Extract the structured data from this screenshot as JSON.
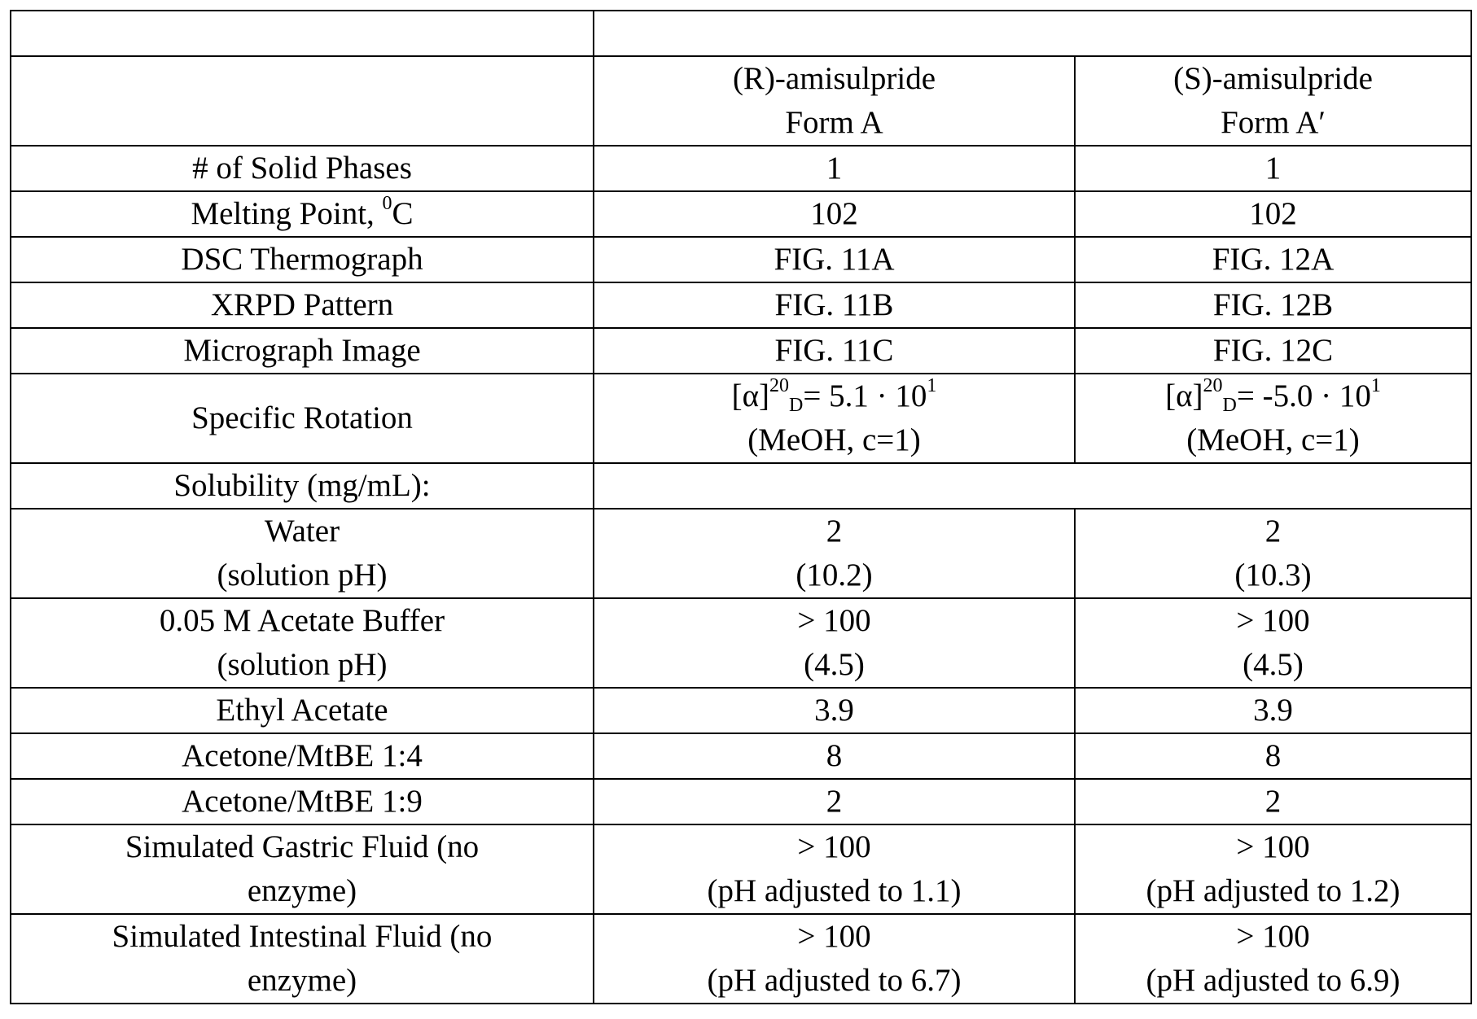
{
  "columns": [
    "",
    "(R)-amisulpride Form A",
    "(S)-amisulpride Form A′"
  ],
  "header": {
    "r_line1": "(R)-amisulpride",
    "r_line2": "Form A",
    "s_line1": "(S)-amisulpride",
    "s_line2": "Form A′"
  },
  "rows": [
    {
      "label": "# of Solid Phases",
      "r": "1",
      "s": "1"
    },
    {
      "label": "Melting Point, ",
      "label_sup": "0",
      "label_after": "C",
      "r": "102",
      "s": "102"
    },
    {
      "label": "DSC Thermograph",
      "r": "FIG. 11A",
      "s": "FIG. 12A"
    },
    {
      "label": "XRPD Pattern",
      "r": "FIG. 11B",
      "s": "FIG. 12B"
    },
    {
      "label": "Micrograph Image",
      "r": "FIG. 11C",
      "s": "FIG. 12C"
    }
  ],
  "rotation": {
    "label": "Specific Rotation",
    "alpha": "[α]",
    "sup": "20",
    "sub": "D",
    "r_value": "= 5.1 · 10",
    "r_exp": "1",
    "r_line2": "(MeOH, c=1)",
    "s_value": "= -5.0 · 10",
    "s_exp": "1",
    "s_line2": "(MeOH, c=1)"
  },
  "solubility_label": "Solubility (mg/mL):",
  "solubility": [
    {
      "l1": "Water",
      "l2": "(solution pH)",
      "r1": "2",
      "r2": "(10.2)",
      "s1": "2",
      "s2": "(10.3)"
    },
    {
      "l1": "0.05 M Acetate Buffer",
      "l2": "(solution pH)",
      "r1": "> 100",
      "r2": "(4.5)",
      "s1": "> 100",
      "s2": "(4.5)"
    },
    {
      "l1": "Ethyl Acetate",
      "r1": "3.9",
      "s1": "3.9"
    },
    {
      "l1": "Acetone/MtBE 1:4",
      "r1": "8",
      "s1": "8"
    },
    {
      "l1": "Acetone/MtBE 1:9",
      "r1": "2",
      "s1": "2"
    },
    {
      "l1": "Simulated Gastric Fluid (no",
      "l2": "enzyme)",
      "r1": "> 100",
      "r2": "(pH adjusted to 1.1)",
      "s1": "> 100",
      "s2": "(pH adjusted to 1.2)"
    },
    {
      "l1": "Simulated Intestinal Fluid (no",
      "l2": "enzyme)",
      "r1": "> 100",
      "r2": "(pH adjusted to 6.7)",
      "s1": "> 100",
      "s2": "(pH adjusted to 6.9)"
    }
  ]
}
